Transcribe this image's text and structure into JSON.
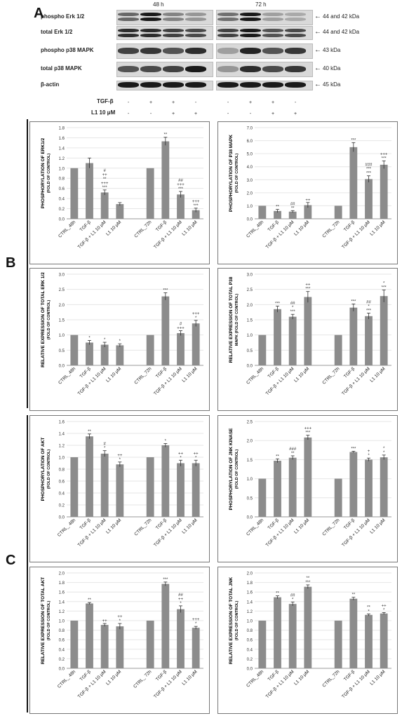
{
  "panels": {
    "a": "A",
    "b": "B",
    "c": "C"
  },
  "blot": {
    "time_left": "48 h",
    "time_right": "72 h",
    "rows": [
      {
        "label": "phospho  Erk 1/2",
        "size": "44 and 42 kDa"
      },
      {
        "label": "total Erk 1/2",
        "size": "44 and 42 kDa"
      },
      {
        "label": "phospho p38 MAPK",
        "size": "43 kDa"
      },
      {
        "label": "total p38 MAPK",
        "size": "40 kDa"
      },
      {
        "label": "β-actin",
        "size": "45 kDa"
      }
    ],
    "treat_row1_label": "TGF-β",
    "treat_row2_label": "L1 10 μM",
    "treat_row1": [
      "-",
      "+",
      "+",
      "-",
      "-",
      "+",
      "+",
      "-"
    ],
    "treat_row2": [
      "-",
      "-",
      "+",
      "+",
      "-",
      "-",
      "+",
      "+"
    ],
    "colors": {
      "band": "#1a1a1a",
      "background": "#d9d9d9"
    }
  },
  "chart_data": [
    {
      "type": "bar",
      "id": "p-erk",
      "ylabel": "PHOSPHORYLATION OF ERK1/2",
      "ylabel2": "(FOLD OF CONTROL)",
      "ylim": [
        0,
        1.8
      ],
      "ystep": 0.2,
      "decimals": 1,
      "categories": [
        "CTRL_48h",
        "TGF-β",
        "TGF-β + L1 10 μM",
        "L1 10 μM",
        "CTRL_72h",
        "TGF-β",
        "TGF-β + L1 10 μM",
        "L1 10 μM"
      ],
      "values": [
        1.0,
        1.1,
        0.52,
        0.29,
        1.0,
        1.53,
        0.48,
        0.17
      ],
      "errors": [
        0,
        0.1,
        0.05,
        0.03,
        0,
        0.08,
        0.06,
        0.04
      ],
      "annotations": [
        [],
        [],
        [
          "#",
          "++",
          "**",
          "+++",
          "***"
        ],
        [],
        [],
        [
          "**"
        ],
        [
          "##",
          "+++",
          "***"
        ],
        [
          "+++",
          "***"
        ]
      ]
    },
    {
      "type": "bar",
      "id": "p-p38",
      "ylabel": "PHOSPHORYLATION OF P38 MAPK",
      "ylabel2": "(FOLD OF CONTROL)",
      "ylim": [
        0,
        7.0
      ],
      "ystep": 1.0,
      "decimals": 1,
      "categories": [
        "CTRL_48h",
        "TGF-β",
        "TGF-β + L1 10 μM",
        "L1 10 μM",
        "CTRL_72h",
        "TGF-β",
        "TGF-β + L1 10 μM",
        "L1 10 μM"
      ],
      "values": [
        1.0,
        0.6,
        0.55,
        1.05,
        1.0,
        5.5,
        3.05,
        4.15
      ],
      "errors": [
        0,
        0.12,
        0.08,
        0.2,
        0,
        0.35,
        0.25,
        0.3
      ],
      "annotations": [
        [],
        [
          "**"
        ],
        [
          "##",
          "**"
        ],
        [
          "++"
        ],
        [],
        [
          "***"
        ],
        [
          "###",
          "***",
          "***"
        ],
        [
          "+++",
          "***"
        ]
      ]
    },
    {
      "type": "bar",
      "id": "t-erk",
      "ylabel": "RELATIVE EXPRESSION OF TOTAL ERK 1/2",
      "ylabel2": "(FOLD OF CONTROL)",
      "ylim": [
        0,
        3.0
      ],
      "ystep": 0.5,
      "decimals": 1,
      "categories": [
        "CTRL_48h",
        "TGF-β",
        "TGF-β + L1 10 μM",
        "L1 10 μM",
        "CTRL_72h",
        "TGF-β",
        "TGF-β + L1 10 μM",
        "L1 10 μM"
      ],
      "values": [
        1.0,
        0.75,
        0.68,
        0.66,
        1.0,
        2.27,
        1.06,
        1.38
      ],
      "errors": [
        0,
        0.07,
        0.08,
        0.05,
        0,
        0.12,
        0.08,
        0.1
      ],
      "annotations": [
        [],
        [
          "*"
        ],
        [
          "*"
        ],
        [
          "*"
        ],
        [],
        [
          "***"
        ],
        [
          "#",
          "+++"
        ],
        [
          "+++",
          "*"
        ]
      ]
    },
    {
      "type": "bar",
      "id": "t-p38",
      "ylabel": "RELATIVE EXPRESSION OF TOTAL P38",
      "ylabel2": "MAPK (FOLD OF CONTROL)",
      "ylim": [
        0,
        3.0
      ],
      "ystep": 0.5,
      "decimals": 1,
      "categories": [
        "CTRL_48h",
        "TGF-β",
        "TGF-β + L1 10 μM",
        "L1 10 μM",
        "CTRL_72h",
        "TGF-β",
        "TGF-β + L1 10 μM",
        "L1 10 μM"
      ],
      "values": [
        1.0,
        1.85,
        1.6,
        2.25,
        1.0,
        1.9,
        1.62,
        2.28
      ],
      "errors": [
        0,
        0.1,
        0.08,
        0.18,
        0,
        0.12,
        0.1,
        0.2
      ],
      "annotations": [
        [],
        [
          "***"
        ],
        [
          "##",
          "*",
          "***"
        ],
        [
          "++",
          "***"
        ],
        [],
        [
          "***"
        ],
        [
          "##",
          "*",
          "***"
        ],
        [
          "*",
          "***"
        ]
      ]
    },
    {
      "type": "bar",
      "id": "p-akt",
      "ylabel": "PHOSPHORYLATION OF AKT",
      "ylabel2": "(FOLD OF CONTROL)",
      "ylim": [
        0,
        1.6
      ],
      "ystep": 0.2,
      "decimals": 1,
      "categories": [
        "CTRL_ 48h",
        "TGF-β",
        "TGF-β + L1 10 μM",
        "L1 10 μM",
        "CTRL_72h",
        "TGF-β",
        "TGF-β + L1 10 μM",
        "L1 10 μM"
      ],
      "values": [
        1.0,
        1.35,
        1.06,
        0.88,
        1.0,
        1.2,
        0.9,
        0.9
      ],
      "errors": [
        0,
        0.04,
        0.05,
        0.04,
        0,
        0.03,
        0.05,
        0.05
      ],
      "annotations": [
        [],
        [
          "**"
        ],
        [
          "#",
          "*"
        ],
        [
          "++",
          "*"
        ],
        [],
        [
          "*"
        ],
        [
          "++",
          "*"
        ],
        [
          "++",
          "*"
        ]
      ]
    },
    {
      "type": "bar",
      "id": "p-jnk",
      "ylabel": "PHOSPHORYLATION OF JNK KINASE",
      "ylabel2": "(FOLD OF CONTROL)",
      "ylim": [
        0,
        2.5
      ],
      "ystep": 0.5,
      "decimals": 1,
      "categories": [
        "CTRL_48h",
        "TGF-β",
        "TGF-β + L1 10 μM",
        "L1 10 μM",
        "CTRL_72h",
        "TGF-β",
        "TGF-β + L1 10 μM",
        "L1 10 μM"
      ],
      "values": [
        1.0,
        1.47,
        1.55,
        2.08,
        1.0,
        1.7,
        1.5,
        1.56
      ],
      "errors": [
        0,
        0.05,
        0.05,
        0.06,
        0,
        0.02,
        0.04,
        0.06
      ],
      "annotations": [
        [],
        [
          "**"
        ],
        [
          "###",
          "**"
        ],
        [
          "+++",
          "***"
        ],
        [],
        [
          "***"
        ],
        [
          "+",
          "*"
        ],
        [
          "*",
          "*"
        ]
      ]
    },
    {
      "type": "bar",
      "id": "t-akt",
      "ylabel": "RELATIVE EXPRESSION OF TOTAL AKT",
      "ylabel2": "(FOLD OF CONTROL)",
      "ylim": [
        0,
        2.0
      ],
      "ystep": 0.2,
      "decimals": 1,
      "categories": [
        "CTRL_ 48h",
        "TGF-β",
        "TGF-β + L1 10 μM",
        "L1 10 μM",
        "CTRL_ 72h",
        "TGF-β",
        "TGF-β + L1 10 μM",
        "L1 10 μM"
      ],
      "values": [
        1.0,
        1.36,
        0.91,
        0.88,
        1.0,
        1.77,
        1.24,
        0.85
      ],
      "errors": [
        0,
        0.02,
        0.03,
        0.06,
        0,
        0.04,
        0.07,
        0.03
      ],
      "annotations": [
        [],
        [
          "**"
        ],
        [
          "++"
        ],
        [
          "++",
          "*"
        ],
        [],
        [
          "***"
        ],
        [
          "##",
          "++",
          "*"
        ],
        [
          "+++",
          "*"
        ]
      ]
    },
    {
      "type": "bar",
      "id": "t-jnk",
      "ylabel": "RELATIVE EXPRESSION OF TOTAL JNK",
      "ylabel2": "(FOLD OF CONTROL)",
      "ylim": [
        0,
        2.0
      ],
      "ystep": 0.2,
      "decimals": 1,
      "categories": [
        "CTRL_48h",
        "TGF-β",
        "TGF-β + L1 10 μM",
        "L1 10 μM",
        "CTRL_72h",
        "TGF-β",
        "TGF-β + L1 10 μM",
        "L1 10 μM"
      ],
      "values": [
        1.0,
        1.49,
        1.35,
        1.71,
        1.0,
        1.46,
        1.12,
        1.15
      ],
      "errors": [
        0,
        0.03,
        0.04,
        0.04,
        0,
        0.03,
        0.02,
        0.02
      ],
      "annotations": [
        [],
        [
          "**"
        ],
        [
          "##",
          "*"
        ],
        [
          "**",
          "***"
        ],
        [],
        [
          "**"
        ],
        [
          "**",
          "*"
        ],
        [
          "++",
          "*"
        ]
      ]
    }
  ],
  "colors": {
    "bar": "#8c8c8c",
    "error": "#333333",
    "grid": "#e6e6e6",
    "axis": "#999999"
  }
}
